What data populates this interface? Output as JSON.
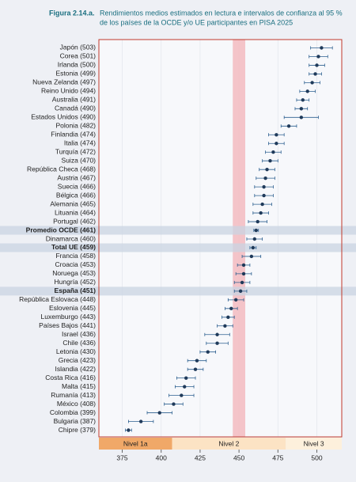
{
  "chart_data": {
    "type": "dot-ci",
    "figure_label": "Figura 2.14.a.",
    "title": [
      "Rendimientos medios estimados en lectura e intervalos de confianza al 95 %",
      "de los países de la OCDE y/o UE participantes en PISA 2025"
    ],
    "categories": [
      "Japón (503)",
      "Corea (501)",
      "Irlanda (500)",
      "Estonia (499)",
      "Nueva Zelanda (497)",
      "Reino Unido (494)",
      "Australia (491)",
      "Canadá (490)",
      "Estados Unidos (490)",
      "Polonia (482)",
      "Finlandia (474)",
      "Italia (474)",
      "Turquía (472)",
      "Suiza (470)",
      "República Checa (468)",
      "Austria (467)",
      "Suecia (466)",
      "Bélgica (466)",
      "Alemania (465)",
      "Lituania (464)",
      "Portugal (462)",
      "Promedio OCDE (461)",
      "Dinamarca (460)",
      "Total UE (459)",
      "Francia (458)",
      "Croacia (453)",
      "Noruega (453)",
      "Hungría (452)",
      "España (451)",
      "República Eslovaca (448)",
      "Eslovenia (445)",
      "Luxemburgo (443)",
      "Países Bajos (441)",
      "Israel (436)",
      "Chile (436)",
      "Letonia (430)",
      "Grecia (423)",
      "Islandia (422)",
      "Costa Rica (416)",
      "Malta (415)",
      "Rumanía (413)",
      "México (408)",
      "Colombia (399)",
      "Bulgaria (387)",
      "Chipre (379)"
    ],
    "values": [
      503,
      501,
      500,
      499,
      497,
      494,
      491,
      490,
      490,
      482,
      474,
      474,
      472,
      470,
      468,
      467,
      466,
      466,
      465,
      464,
      462,
      461,
      460,
      459,
      458,
      453,
      453,
      452,
      451,
      448,
      445,
      443,
      441,
      436,
      436,
      430,
      423,
      422,
      416,
      415,
      413,
      408,
      399,
      387,
      379
    ],
    "errors": [
      7,
      6,
      5,
      4,
      5,
      5,
      4,
      4,
      11,
      5,
      5,
      5,
      5,
      5,
      5,
      6,
      6,
      6,
      6,
      5,
      6,
      1.5,
      5,
      2,
      6,
      4,
      5,
      5,
      4,
      5,
      4,
      4,
      5,
      8,
      7,
      5,
      6,
      5,
      6,
      6,
      8,
      6,
      8,
      8,
      2
    ],
    "highlight": [
      21,
      23,
      28
    ],
    "color": "#1f3a5a",
    "error_color": "#2c5f8f",
    "highlight_color": "#c9d4e2",
    "reference_band": [
      446,
      454
    ],
    "reference_color": "#f2b6bd",
    "levels": [
      "Nivel 1a",
      "Nivel 2",
      "Nivel 3"
    ],
    "level_bounds": [
      407,
      480
    ],
    "level_colors": [
      "#f0a868",
      "#fce3c4",
      "#fdf0dc"
    ],
    "xlim": [
      360,
      516
    ],
    "xticks": [
      375,
      400,
      425,
      450,
      475,
      500
    ],
    "grid": true
  }
}
